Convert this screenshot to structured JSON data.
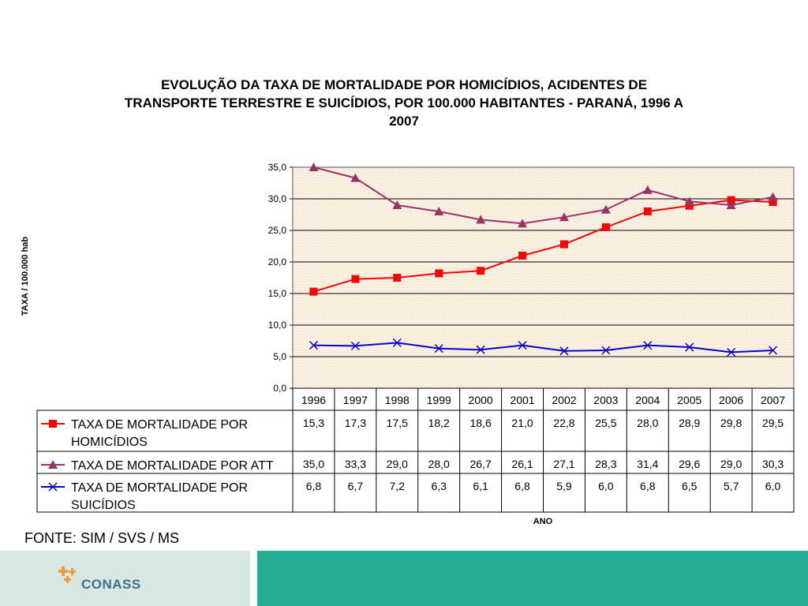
{
  "chart_data": {
    "type": "line",
    "title": [
      "EVOLUÇÃO DA TAXA DE MORTALIDADE POR HOMICÍDIOS, ACIDENTES DE",
      "TRANSPORTE TERRESTRE E SUICÍDIOS, POR 100.000 HABITANTES - PARANÁ, 1996 A",
      "2007"
    ],
    "xlabel": "ANO",
    "ylabel": "TAXA / 100.000 hab",
    "ylim": [
      0,
      35
    ],
    "yticks": [
      "0,0",
      "5,0",
      "10,0",
      "15,0",
      "20,0",
      "25,0",
      "30,0",
      "35,0"
    ],
    "grid": true,
    "legend": "data-table-below",
    "categories": [
      "1996",
      "1997",
      "1998",
      "1999",
      "2000",
      "2001",
      "2002",
      "2003",
      "2004",
      "2005",
      "2006",
      "2007"
    ],
    "series": [
      {
        "name_lines": [
          "TAXA DE MORTALIDADE POR",
          "HOMICÍDIOS"
        ],
        "color": "#ff0000",
        "marker": "square",
        "values": [
          15.3,
          17.3,
          17.5,
          18.2,
          18.6,
          21.0,
          22.8,
          25.5,
          28.0,
          28.9,
          29.8,
          29.5
        ],
        "labels": [
          "15,3",
          "17,3",
          "17,5",
          "18,2",
          "18,6",
          "21,0",
          "22,8",
          "25,5",
          "28,0",
          "28,9",
          "29,8",
          "29,5"
        ]
      },
      {
        "name_lines": [
          "TAXA DE MORTALIDADE POR ATT"
        ],
        "color": "#993366",
        "marker": "triangle",
        "values": [
          35.0,
          33.3,
          29.0,
          28.0,
          26.7,
          26.1,
          27.1,
          28.3,
          31.4,
          29.6,
          29.0,
          30.3
        ],
        "labels": [
          "35,0",
          "33,3",
          "29,0",
          "28,0",
          "26,7",
          "26,1",
          "27,1",
          "28,3",
          "31,4",
          "29,6",
          "29,0",
          "30,3"
        ]
      },
      {
        "name_lines": [
          "TAXA DE MORTALIDADE POR",
          "SUICÍDIOS"
        ],
        "color": "#0000cc",
        "marker": "x",
        "values": [
          6.8,
          6.7,
          7.2,
          6.3,
          6.1,
          6.8,
          5.9,
          6.0,
          6.8,
          6.5,
          5.7,
          6.0
        ],
        "labels": [
          "6,8",
          "6,7",
          "7,2",
          "6,3",
          "6,1",
          "6,8",
          "5,9",
          "6,0",
          "6,8",
          "6,5",
          "5,7",
          "6,0"
        ]
      }
    ]
  },
  "source": "FONTE: SIM / SVS / MS",
  "footer": {
    "logo_text": "CONASS",
    "colors": {
      "left": "#d8e8e2",
      "right": "#27ad94",
      "logo_mark": "#f39a3a"
    }
  }
}
